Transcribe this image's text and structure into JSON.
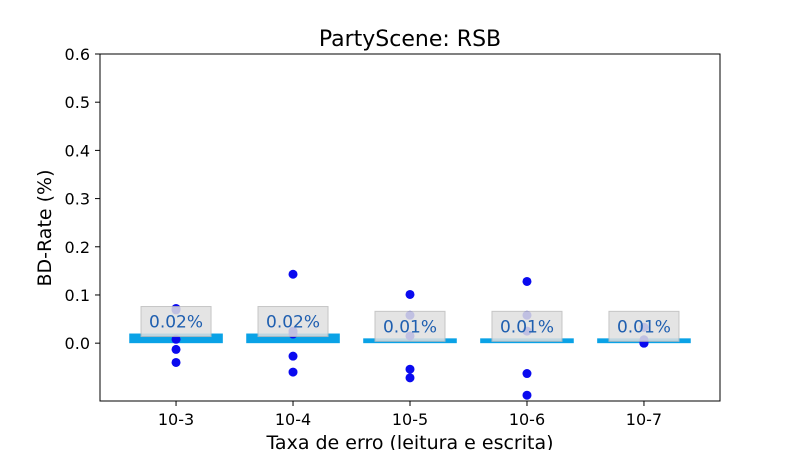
{
  "chart_data": {
    "type": "bar",
    "title": "PartyScene: RSB",
    "xlabel": "Taxa de erro (leitura e escrita)",
    "ylabel": "BD-Rate (%)",
    "ylim": [
      -0.12,
      0.6
    ],
    "yticks": [
      0.0,
      0.1,
      0.2,
      0.3,
      0.4,
      0.5,
      0.6
    ],
    "ytick_labels": [
      "0.0",
      "0.1",
      "0.2",
      "0.3",
      "0.4",
      "0.5",
      "0.6"
    ],
    "categories": [
      "10-3",
      "10-4",
      "10-5",
      "10-6",
      "10-7"
    ],
    "values": [
      0.02,
      0.02,
      0.01,
      0.01,
      0.01
    ],
    "data_labels": [
      "0.02%",
      "0.02%",
      "0.01%",
      "0.01%",
      "0.01%"
    ],
    "points": [
      [
        0.072,
        0.069,
        0.008,
        -0.013,
        -0.04
      ],
      [
        0.143,
        0.025,
        0.019,
        -0.027,
        -0.06
      ],
      [
        0.101,
        0.058,
        0.015,
        -0.054,
        -0.072
      ],
      [
        0.128,
        0.058,
        0.025,
        -0.063,
        -0.108
      ],
      [
        0.033,
        0.007,
        0.003,
        0.0,
        0.0
      ]
    ],
    "grid": false,
    "colors": {
      "bar": "#0aa2e6",
      "point": "#0a0aef",
      "label_text": "#1f5fb0",
      "label_box": "#e0e0e0",
      "label_box_border": "#bcbcbc"
    }
  }
}
